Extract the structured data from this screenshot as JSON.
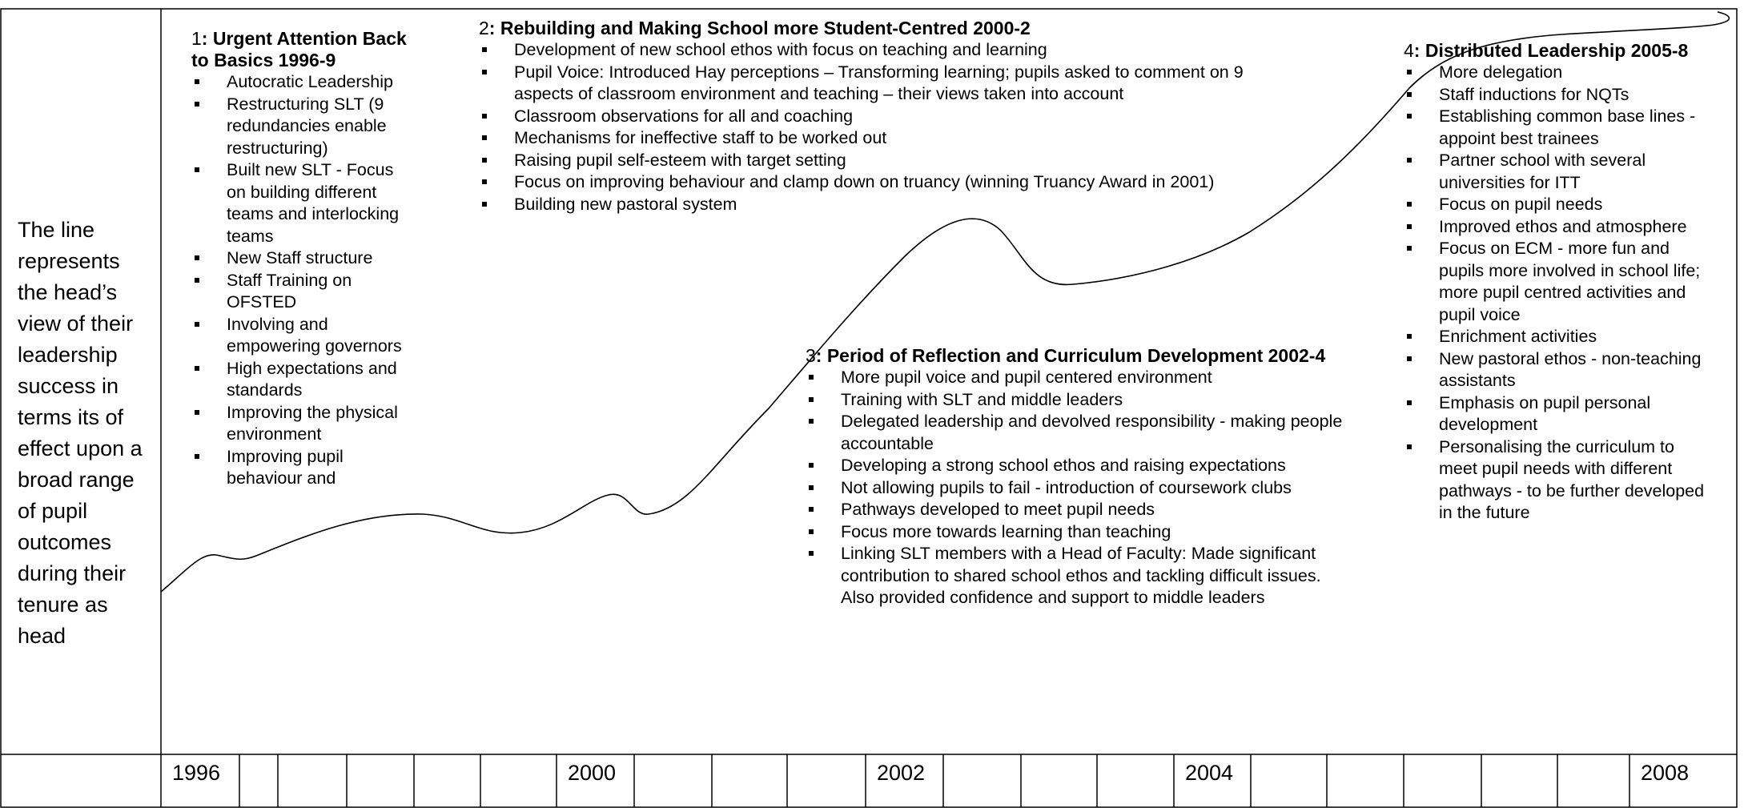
{
  "side_text": "The line represents the head’s view of their leadership success in terms its of effect upon a broad range of pupil outcomes during their tenure as head",
  "phases": [
    {
      "number": "1",
      "title": ": Urgent Attention Back to Basics 1996-9",
      "bullets": [
        "Autocratic Leadership",
        "Restructuring SLT (9 redundancies enable restructuring)",
        "Built new SLT - Focus on building different teams and interlocking teams",
        "New Staff structure",
        "Staff Training on OFSTED",
        "Involving and empowering governors",
        "High expectations and standards",
        "Improving the physical environment",
        "Improving pupil behaviour and"
      ]
    },
    {
      "number": "2",
      "title": ": Rebuilding and Making School more Student-Centred 2000-2",
      "bullets": [
        "Development of new school ethos with focus on teaching and learning",
        "Pupil Voice: Introduced Hay perceptions – Transforming learning; pupils asked to comment on 9 aspects of classroom environment and teaching – their views taken into account",
        "Classroom observations for all and coaching",
        "Mechanisms for ineffective staff to be worked out",
        "Raising pupil self-esteem with target setting",
        "Focus on improving behaviour and clamp down on truancy (winning Truancy Award in 2001)",
        "Building new pastoral system"
      ]
    },
    {
      "number": "3",
      "title": ": Period of Reflection and Curriculum Development 2002-4",
      "bullets": [
        "More pupil voice and pupil centered environment",
        "Training with SLT and middle leaders",
        "Delegated leadership and devolved responsibility - making people accountable",
        "Developing a strong school ethos and raising expectations",
        "Not allowing pupils to fail - introduction of coursework clubs",
        "Pathways developed to meet pupil needs",
        "Focus more towards learning than teaching",
        "Linking SLT members with a Head of Faculty: Made significant contribution to shared school ethos and tackling difficult issues. Also provided confidence and support to middle leaders"
      ]
    },
    {
      "number": "4",
      "title": ": Distributed Leadership 2005-8",
      "bullets": [
        "More delegation",
        "Staff inductions for NQTs",
        "Establishing common base lines - appoint best trainees",
        "Partner school with several universities for ITT",
        "Focus on pupil needs",
        "Improved ethos and atmosphere",
        "Focus on ECM - more fun and pupils more involved in school life; more pupil centred activities and pupil voice",
        "Enrichment activities",
        "New pastoral ethos - non-teaching assistants",
        "Emphasis on pupil personal development",
        "Personalising the curriculum to meet pupil needs with different pathways - to be further developed in the future"
      ]
    }
  ],
  "timeline": [
    "1996",
    "2000",
    "2002",
    "2004",
    "2008"
  ]
}
